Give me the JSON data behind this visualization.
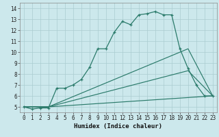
{
  "xlabel": "Humidex (Indice chaleur)",
  "bg_color": "#cce8ec",
  "line_color": "#2a7a6a",
  "grid_color": "#aaccd0",
  "ylim": [
    4.5,
    14.5
  ],
  "xlim": [
    -0.5,
    23.5
  ],
  "yticks": [
    5,
    6,
    7,
    8,
    9,
    10,
    11,
    12,
    13,
    14
  ],
  "xticks": [
    0,
    1,
    2,
    3,
    4,
    5,
    6,
    7,
    8,
    9,
    10,
    11,
    12,
    13,
    14,
    15,
    16,
    17,
    18,
    19,
    20,
    21,
    22,
    23
  ],
  "lines": [
    {
      "x": [
        0,
        1,
        2,
        3,
        4,
        5,
        6,
        7,
        8,
        9,
        10,
        11,
        12,
        13,
        14,
        15,
        16,
        17,
        18,
        19,
        20,
        21,
        22,
        23
      ],
      "y": [
        5.0,
        4.8,
        4.9,
        4.9,
        6.7,
        6.7,
        7.0,
        7.5,
        8.6,
        10.3,
        10.3,
        11.8,
        12.8,
        12.5,
        13.4,
        13.5,
        13.7,
        13.4,
        13.4,
        10.3,
        8.5,
        7.0,
        6.0,
        6.0
      ],
      "marker": true
    },
    {
      "x": [
        0,
        3,
        23
      ],
      "y": [
        5.0,
        5.0,
        6.0
      ],
      "marker": false
    },
    {
      "x": [
        0,
        3,
        20,
        23
      ],
      "y": [
        5.0,
        5.0,
        8.3,
        6.0
      ],
      "marker": false
    },
    {
      "x": [
        0,
        3,
        20,
        23
      ],
      "y": [
        5.0,
        5.0,
        10.3,
        6.0
      ],
      "marker": false
    }
  ]
}
